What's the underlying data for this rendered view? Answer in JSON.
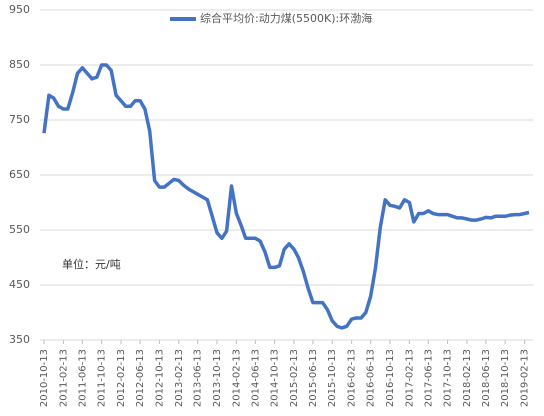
{
  "chart_data": {
    "type": "line",
    "x": [
      "2010-10-13",
      "2010-11-13",
      "2010-12-13",
      "2011-01-13",
      "2011-02-13",
      "2011-03-13",
      "2011-04-13",
      "2011-05-13",
      "2011-06-13",
      "2011-07-13",
      "2011-08-13",
      "2011-09-13",
      "2011-10-13",
      "2011-11-13",
      "2011-12-13",
      "2012-01-13",
      "2012-02-13",
      "2012-03-13",
      "2012-04-13",
      "2012-05-13",
      "2012-06-13",
      "2012-07-13",
      "2012-08-13",
      "2012-09-13",
      "2012-10-13",
      "2012-11-13",
      "2012-12-13",
      "2013-01-13",
      "2013-02-13",
      "2013-03-13",
      "2013-04-13",
      "2013-05-13",
      "2013-06-13",
      "2013-07-13",
      "2013-08-13",
      "2013-09-13",
      "2013-10-13",
      "2013-11-13",
      "2013-12-13",
      "2014-01-13",
      "2014-02-13",
      "2014-03-13",
      "2014-04-13",
      "2014-05-13",
      "2014-06-13",
      "2014-07-13",
      "2014-08-13",
      "2014-09-13",
      "2014-10-13",
      "2014-11-13",
      "2014-12-13",
      "2015-01-13",
      "2015-02-13",
      "2015-03-13",
      "2015-04-13",
      "2015-05-13",
      "2015-06-13",
      "2015-07-13",
      "2015-08-13",
      "2015-09-13",
      "2015-10-13",
      "2015-11-13",
      "2015-12-13",
      "2016-01-13",
      "2016-02-13",
      "2016-03-13",
      "2016-04-13",
      "2016-05-13",
      "2016-06-13",
      "2016-07-13",
      "2016-08-13",
      "2016-09-13",
      "2016-10-13",
      "2016-11-13",
      "2016-12-13",
      "2017-01-13",
      "2017-02-13",
      "2017-03-13",
      "2017-04-13",
      "2017-05-13",
      "2017-06-13",
      "2017-07-13",
      "2017-08-13",
      "2017-09-13",
      "2017-10-13",
      "2017-11-13",
      "2017-12-13",
      "2018-01-13",
      "2018-02-13",
      "2018-03-13",
      "2018-04-13",
      "2018-05-13",
      "2018-06-13",
      "2018-07-13",
      "2018-08-13",
      "2018-09-13",
      "2018-10-13",
      "2018-11-13",
      "2018-12-13",
      "2019-01-13",
      "2019-02-13",
      "2019-03-13"
    ],
    "series": [
      {
        "name": "综合平均价:动力煤(5500K):环渤海",
        "color": "#4472c4",
        "values": [
          726,
          795,
          790,
          775,
          770,
          770,
          800,
          835,
          845,
          835,
          825,
          828,
          850,
          850,
          840,
          795,
          785,
          775,
          775,
          785,
          785,
          770,
          730,
          640,
          628,
          628,
          635,
          642,
          640,
          632,
          625,
          620,
          615,
          610,
          605,
          575,
          545,
          535,
          548,
          630,
          580,
          560,
          535,
          535,
          535,
          530,
          510,
          482,
          482,
          485,
          515,
          525,
          515,
          500,
          475,
          445,
          418,
          418,
          418,
          405,
          385,
          375,
          372,
          375,
          388,
          390,
          390,
          400,
          430,
          480,
          555,
          605,
          595,
          593,
          590,
          605,
          600,
          565,
          580,
          580,
          585,
          580,
          578,
          578,
          578,
          575,
          572,
          572,
          570,
          568,
          568,
          570,
          573,
          572,
          575,
          575,
          575,
          577,
          578,
          578,
          580,
          582
        ]
      }
    ],
    "xlim": [
      "2010-10-13",
      "2019-03-13"
    ],
    "xticks": [
      "2010-10-13",
      "2011-02-13",
      "2011-06-13",
      "2011-10-13",
      "2012-02-13",
      "2012-06-13",
      "2012-10-13",
      "2013-02-13",
      "2013-06-13",
      "2013-10-13",
      "2014-02-13",
      "2014-06-13",
      "2014-10-13",
      "2015-02-13",
      "2015-06-13",
      "2015-10-13",
      "2016-02-13",
      "2016-06-13",
      "2016-10-13",
      "2017-02-13",
      "2017-06-13",
      "2017-10-13",
      "2018-02-13",
      "2018-06-13",
      "2018-10-13",
      "2019-02-13"
    ],
    "ylim": [
      350,
      950
    ],
    "yticks": [
      350,
      450,
      550,
      650,
      750,
      850,
      950
    ],
    "grid": true,
    "annotation": "单位：元/吨"
  }
}
